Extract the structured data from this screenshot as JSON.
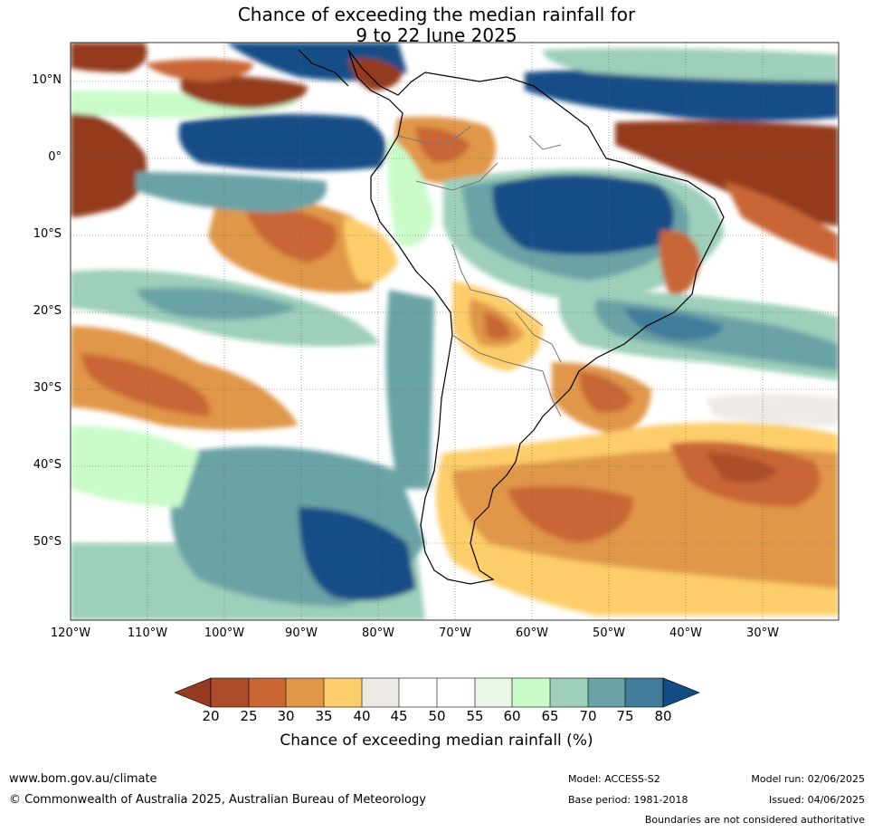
{
  "title": {
    "line1": "Chance of exceeding the median rainfall for",
    "line2": "9 to 22 June 2025"
  },
  "map": {
    "lat_labels": [
      "10°N",
      "0°",
      "10°S",
      "20°S",
      "30°S",
      "40°S",
      "50°S"
    ],
    "lon_labels": [
      "120°W",
      "110°W",
      "100°W",
      "90°W",
      "80°W",
      "70°W",
      "60°W",
      "50°W",
      "40°W",
      "30°W"
    ],
    "gridlines": true,
    "colors": {
      "p20": "#933a1f",
      "p25": "#ab4d2a",
      "p30": "#c96634",
      "p35": "#e09748",
      "p40": "#fdcd6b",
      "p45": "#edeae6",
      "p55": "#ffffff",
      "p60": "#e8f5e8",
      "p65": "#c9fbc9",
      "p70": "#9dcfba",
      "p75": "#6aa3a6",
      "p80": "#437b9b",
      "p85": "#124d86"
    }
  },
  "colorbar": {
    "ticks": [
      "20",
      "25",
      "30",
      "35",
      "40",
      "45",
      "50",
      "55",
      "60",
      "65",
      "70",
      "75",
      "80"
    ],
    "segment_colors": [
      "#ab4d2a",
      "#c96634",
      "#e09748",
      "#fdcd6b",
      "#edeae6",
      "#ffffff",
      "#ffffff",
      "#e8f5e8",
      "#c9fbc9",
      "#9dcfba",
      "#6aa3a6",
      "#437b9b"
    ],
    "low_extend_color": "#933a1f",
    "high_extend_color": "#124d86",
    "label": "Chance of exceeding median rainfall (%)"
  },
  "footer": {
    "website": "www.bom.gov.au/climate",
    "copyright": "© Commonwealth of Australia 2025, Australian Bureau of Meteorology",
    "model": "Model: ACCESS-S2",
    "base_period": "Base period: 1981-2018",
    "model_run": "Model run: 02/06/2025",
    "issued": "Issued: 04/06/2025",
    "disclaimer": "Boundaries are not considered authoritative"
  }
}
